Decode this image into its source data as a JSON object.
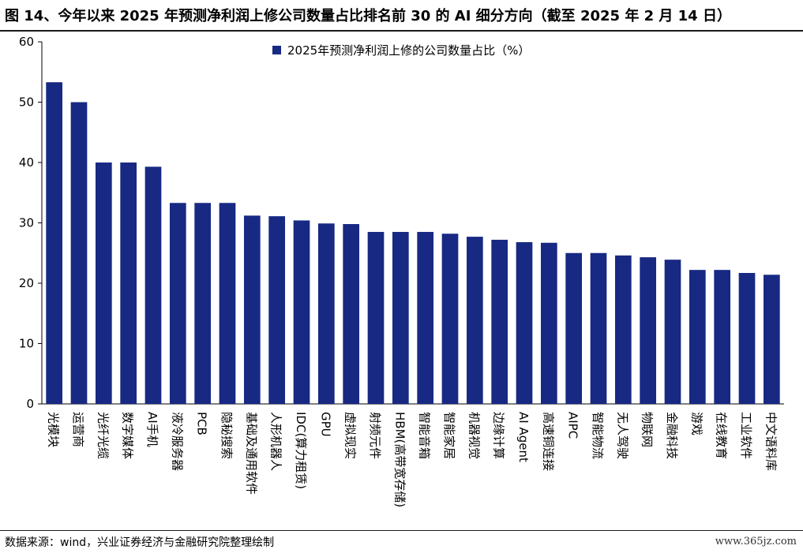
{
  "header": {
    "title": "图 14、今年以来 2025 年预测净利润上修公司数量占比排名前 30 的 AI 细分方向（截至 2025 年 2 月 14 日）"
  },
  "footer": {
    "source": "数据来源：wind，兴业证券经济与金融研究院整理绘制",
    "watermark": "www.365jz.com"
  },
  "colors": {
    "bar": "#172983",
    "axis": "#000000"
  },
  "chart_data": {
    "type": "bar",
    "ylim": [
      0,
      60
    ],
    "yticks": [
      0,
      10,
      20,
      30,
      40,
      50,
      60
    ],
    "grid": false,
    "legend_position": "top-center",
    "categories": [
      "光模块",
      "运营商",
      "光纤光缆",
      "数字媒体",
      "AI手机",
      "液冷服务器",
      "PCB",
      "隐秘搜索",
      "基础及通用软件",
      "人形机器人",
      "IDC(算力租赁)",
      "GPU",
      "虚拟现实",
      "射频元件",
      "HBM(高带宽存储)",
      "智能音箱",
      "智能家居",
      "机器视觉",
      "边缘计算",
      "AI Agent",
      "高速铜连接",
      "AIPC",
      "智能物流",
      "无人驾驶",
      "物联网",
      "金融科技",
      "游戏",
      "在线教育",
      "工业软件",
      "中文语料库"
    ],
    "series": [
      {
        "name": "2025年预测净利润上修的公司数量占比（%）",
        "values": [
          53.3,
          50.0,
          40.0,
          40.0,
          39.3,
          33.3,
          33.3,
          33.3,
          31.2,
          31.1,
          30.4,
          29.9,
          29.8,
          28.5,
          28.5,
          28.5,
          28.2,
          27.7,
          27.2,
          26.8,
          26.7,
          25.0,
          25.0,
          24.6,
          24.3,
          23.9,
          22.2,
          22.2,
          21.7,
          21.4
        ]
      }
    ]
  }
}
